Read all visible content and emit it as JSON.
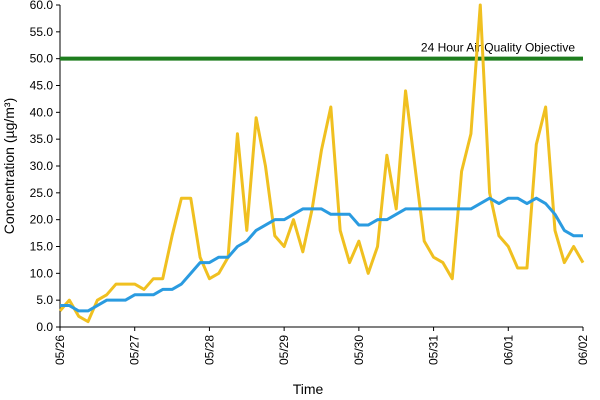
{
  "chart_data": {
    "type": "line",
    "y_label": "Concentration (µg/m³)",
    "x_label": "Time",
    "reference_line": {
      "value": 50,
      "label": "24 Hour Air Quality Objective",
      "color": "#1e7d1e"
    },
    "x": [
      0,
      3,
      6,
      9,
      12,
      15,
      18,
      21,
      24,
      27,
      30,
      33,
      36,
      39,
      42,
      45,
      48,
      51,
      54,
      57,
      60,
      63,
      66,
      69,
      72,
      75,
      78,
      81,
      84,
      87,
      90,
      93,
      96,
      99,
      102,
      105,
      108,
      111,
      114,
      117,
      120,
      123,
      126,
      129,
      132,
      135,
      138,
      141,
      144,
      147,
      150,
      153,
      156,
      159,
      162,
      165,
      168
    ],
    "series": [
      {
        "color": "#f0c020",
        "values": [
          3,
          5,
          2,
          1,
          5,
          6,
          8,
          8,
          8,
          7,
          9,
          9,
          17,
          24,
          24,
          13,
          9,
          10,
          13,
          36,
          18,
          39,
          30,
          17,
          15,
          20,
          14,
          22,
          33,
          41,
          18,
          12,
          16,
          10,
          15,
          32,
          22,
          44,
          30,
          16,
          13,
          12,
          9,
          29,
          36,
          60,
          25,
          17,
          15,
          11,
          11,
          34,
          41,
          18,
          12,
          15,
          12
        ]
      },
      {
        "color": "#2a9be0",
        "values": [
          4,
          4,
          3,
          3,
          4,
          5,
          5,
          5,
          6,
          6,
          6,
          7,
          7,
          8,
          10,
          12,
          12,
          13,
          13,
          15,
          16,
          18,
          19,
          20,
          20,
          21,
          22,
          22,
          22,
          21,
          21,
          21,
          19,
          19,
          20,
          20,
          21,
          22,
          22,
          22,
          22,
          22,
          22,
          22,
          22,
          23,
          24,
          23,
          24,
          24,
          23,
          24,
          23,
          21,
          18,
          17,
          17
        ]
      }
    ],
    "xlim": [
      0,
      168
    ],
    "xticks": [
      {
        "value": 0,
        "label": "05/26"
      },
      {
        "value": 24,
        "label": "05/27"
      },
      {
        "value": 48,
        "label": "05/28"
      },
      {
        "value": 72,
        "label": "05/29"
      },
      {
        "value": 96,
        "label": "05/30"
      },
      {
        "value": 120,
        "label": "05/31"
      },
      {
        "value": 144,
        "label": "06/01"
      },
      {
        "value": 168,
        "label": "06/02"
      }
    ],
    "ylim": [
      0,
      60
    ],
    "yticks": [
      {
        "value": 0,
        "label": "0.0"
      },
      {
        "value": 5,
        "label": "5.0"
      },
      {
        "value": 10,
        "label": "10.0"
      },
      {
        "value": 15,
        "label": "15.0"
      },
      {
        "value": 20,
        "label": "20.0"
      },
      {
        "value": 25,
        "label": "25.0"
      },
      {
        "value": 30,
        "label": "30.0"
      },
      {
        "value": 35,
        "label": "35.0"
      },
      {
        "value": 40,
        "label": "40.0"
      },
      {
        "value": 45,
        "label": "45.0"
      },
      {
        "value": 50,
        "label": "50.0"
      },
      {
        "value": 55,
        "label": "55.0"
      },
      {
        "value": 60,
        "label": "60.0"
      }
    ],
    "grid": false
  }
}
